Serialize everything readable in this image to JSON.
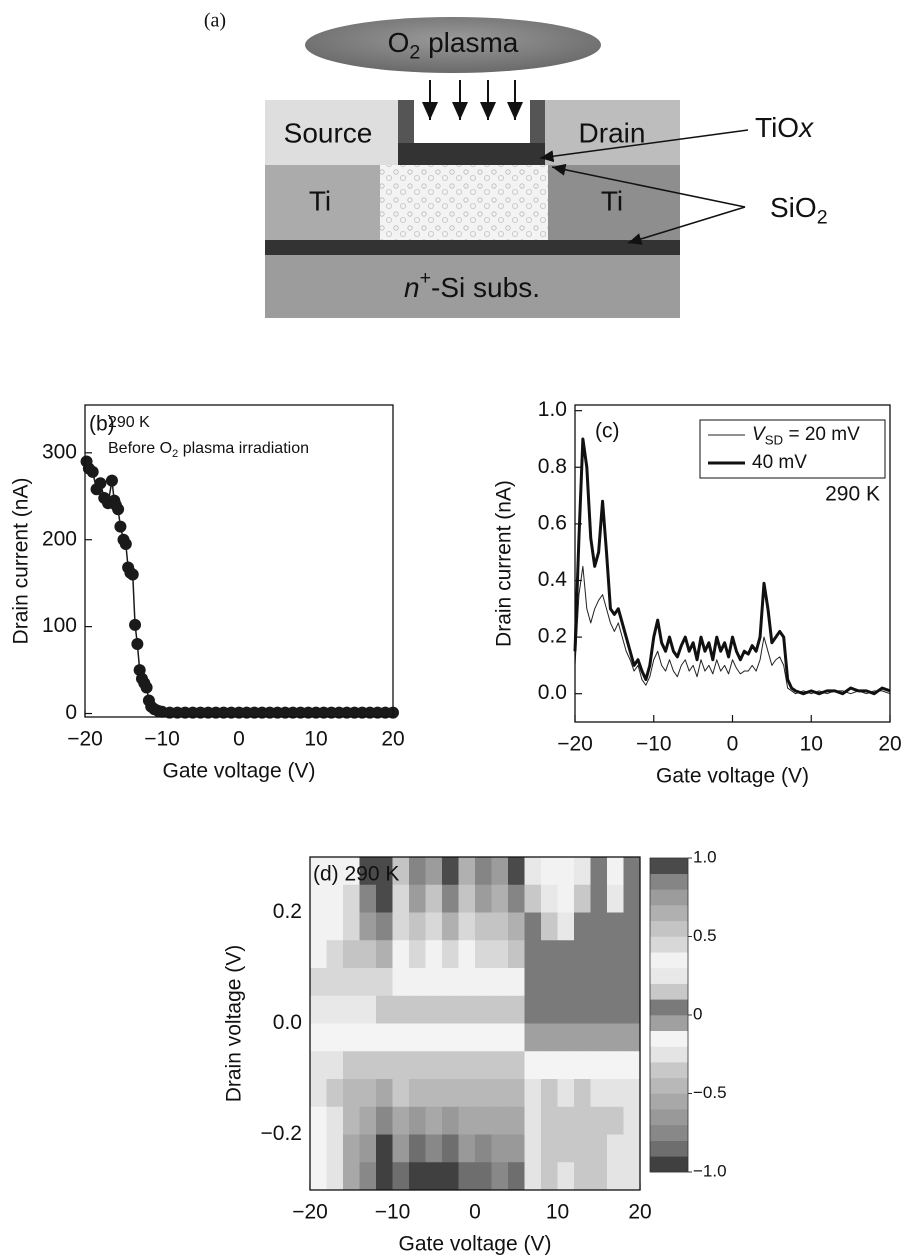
{
  "diagram": {
    "panel_label": "(a)",
    "plasma": [
      "O",
      "2",
      " plasma"
    ],
    "source": "Source",
    "drain": "Drain",
    "ti_left": "Ti",
    "ti_right": "Ti",
    "tiox": [
      "TiO",
      "x"
    ],
    "sio2": [
      "SiO",
      "2"
    ],
    "substrate": [
      "n",
      "+",
      "-Si subs."
    ]
  },
  "chart_data": [
    {
      "type": "scatter",
      "panel_label": "(b)",
      "annotations": [
        "290 K",
        [
          "Before O",
          "2",
          " plasma irradiation"
        ]
      ],
      "x_label": "Gate voltage (V)",
      "y_label": "Drain current (nA)",
      "x": [
        -19.8,
        -19.5,
        -19,
        -18.5,
        -18,
        -17.5,
        -17,
        -16.5,
        -16.2,
        -16,
        -15.7,
        -15.4,
        -15,
        -14.7,
        -14.4,
        -14.1,
        -13.8,
        -13.5,
        -13.2,
        -12.9,
        -12.6,
        -12.3,
        -12,
        -11.7,
        -11.4,
        -11,
        -10.5,
        -10,
        -9,
        -8,
        -7,
        -6,
        -5,
        -4,
        -3,
        -2,
        -1,
        0,
        1,
        2,
        3,
        4,
        5,
        6,
        7,
        8,
        9,
        10,
        11,
        12,
        13,
        14,
        15,
        16,
        17,
        18,
        19,
        20
      ],
      "values": [
        290,
        282,
        278,
        258,
        265,
        248,
        242,
        268,
        245,
        240,
        235,
        215,
        200,
        195,
        168,
        162,
        160,
        102,
        80,
        50,
        40,
        35,
        30,
        15,
        8,
        5,
        3,
        2,
        1,
        1,
        1,
        1,
        1,
        1,
        1,
        1,
        1,
        1,
        1,
        1,
        1,
        1,
        1,
        1,
        1,
        1,
        1,
        1,
        1,
        1,
        1,
        1,
        1,
        1,
        1,
        1,
        1,
        1
      ],
      "color": "#1a1a1a",
      "xlim": [
        -20,
        20
      ],
      "ylim": [
        -4,
        355
      ],
      "xticks": [
        {
          "value": -20,
          "label": "−20"
        },
        {
          "value": -10,
          "label": "−10"
        },
        0,
        10,
        20
      ],
      "yticks": [
        0,
        100,
        200,
        300
      ]
    },
    {
      "type": "line",
      "panel_label": "(c)",
      "annotations": [
        "290 K"
      ],
      "x_label": "Gate voltage (V)",
      "y_label": "Drain current (nA)",
      "x": [
        -20,
        -19.5,
        -19,
        -18.5,
        -18,
        -17.5,
        -17,
        -16.5,
        -16,
        -15.5,
        -15,
        -14.5,
        -14,
        -13.5,
        -13,
        -12.5,
        -12,
        -11.5,
        -11,
        -10.5,
        -10,
        -9.5,
        -9,
        -8.5,
        -8,
        -7.5,
        -7,
        -6.5,
        -6,
        -5.5,
        -5,
        -4.5,
        -4,
        -3.5,
        -3,
        -2.5,
        -2,
        -1.5,
        -1,
        -0.5,
        0,
        0.5,
        1,
        1.5,
        2,
        2.5,
        3,
        3.5,
        4,
        4.5,
        5,
        5.5,
        6,
        6.5,
        7,
        7.5,
        8,
        9,
        10,
        11,
        12,
        13,
        14,
        15,
        16,
        17,
        18,
        19,
        20
      ],
      "series": [
        {
          "name": [
            "V",
            "SD",
            " = 20 mV"
          ],
          "color": "#222222",
          "width": 1,
          "values": [
            0.1,
            0.35,
            0.45,
            0.3,
            0.25,
            0.3,
            0.33,
            0.35,
            0.3,
            0.25,
            0.22,
            0.25,
            0.2,
            0.15,
            0.12,
            0.08,
            0.1,
            0.05,
            0.03,
            0.06,
            0.12,
            0.15,
            0.1,
            0.08,
            0.12,
            0.08,
            0.06,
            0.1,
            0.12,
            0.08,
            0.1,
            0.06,
            0.12,
            0.08,
            0.1,
            0.07,
            0.12,
            0.08,
            0.1,
            0.07,
            0.12,
            0.09,
            0.07,
            0.08,
            0.08,
            0.1,
            0.08,
            0.12,
            0.2,
            0.15,
            0.1,
            0.12,
            0.13,
            0.1,
            0.02,
            0.01,
            0.0,
            0.01,
            0.0,
            0.01,
            0.0,
            0.01,
            0.01,
            0.0,
            0.01,
            0.0,
            0.01,
            0.01,
            0.0
          ]
        },
        {
          "name": "40 mV",
          "color": "#111111",
          "width": 3,
          "values": [
            0.15,
            0.55,
            0.9,
            0.8,
            0.55,
            0.45,
            0.5,
            0.68,
            0.5,
            0.3,
            0.28,
            0.3,
            0.25,
            0.2,
            0.15,
            0.1,
            0.12,
            0.08,
            0.05,
            0.1,
            0.2,
            0.26,
            0.18,
            0.15,
            0.2,
            0.15,
            0.13,
            0.17,
            0.2,
            0.15,
            0.18,
            0.12,
            0.2,
            0.15,
            0.18,
            0.12,
            0.2,
            0.15,
            0.18,
            0.13,
            0.2,
            0.15,
            0.12,
            0.15,
            0.14,
            0.17,
            0.15,
            0.2,
            0.39,
            0.3,
            0.18,
            0.2,
            0.22,
            0.2,
            0.05,
            0.02,
            0.01,
            0.0,
            0.01,
            0.0,
            0.01,
            0.01,
            0.0,
            0.02,
            0.01,
            0.01,
            0.0,
            0.02,
            0.01
          ]
        }
      ],
      "xlim": [
        -20,
        20
      ],
      "ylim": [
        -0.1,
        1.02
      ],
      "xticks": [
        {
          "value": -20,
          "label": "−20"
        },
        {
          "value": -10,
          "label": "−10"
        },
        0,
        10,
        20
      ],
      "yticks": [
        {
          "value": 0,
          "label": "0.0"
        },
        0.2,
        0.4,
        0.6,
        0.8,
        {
          "value": 1,
          "label": "1.0"
        }
      ],
      "legend": "upper right"
    },
    {
      "type": "heatmap",
      "panel_label": "(d) 290 K",
      "x_label": "Gate voltage (V)",
      "y_label": "Drain voltage (V)",
      "x": [
        -19,
        -17,
        -15,
        -13,
        -11,
        -9,
        -7,
        -5,
        -3,
        -1,
        1,
        3,
        5,
        7,
        9,
        11,
        13,
        15,
        17,
        19
      ],
      "y": [
        0.275,
        0.225,
        0.175,
        0.125,
        0.075,
        0.025,
        -0.025,
        -0.075,
        -0.125,
        -0.175,
        -0.225,
        -0.275
      ],
      "z": [
        [
          0.35,
          0.35,
          0.35,
          0.9,
          1.0,
          0.5,
          0.8,
          0.7,
          0.9,
          0.6,
          0.85,
          0.7,
          0.9,
          0.2,
          0.3,
          0.35,
          0.2,
          0.05,
          0.3,
          0.05
        ],
        [
          0.35,
          0.35,
          0.4,
          0.8,
          0.9,
          0.45,
          0.7,
          0.55,
          0.8,
          0.5,
          0.7,
          0.6,
          0.8,
          0.15,
          0.25,
          0.3,
          0.15,
          0.05,
          0.2,
          0.05
        ],
        [
          0.35,
          0.35,
          0.45,
          0.7,
          0.8,
          0.4,
          0.55,
          0.45,
          0.6,
          0.45,
          0.55,
          0.5,
          0.6,
          0.05,
          0.15,
          0.2,
          0.05,
          0.05,
          0.05,
          0.05
        ],
        [
          0.35,
          0.4,
          0.5,
          0.55,
          0.6,
          0.35,
          0.45,
          0.35,
          0.45,
          0.35,
          0.45,
          0.4,
          0.5,
          0.05,
          0.05,
          0.05,
          0.05,
          0.05,
          0.05,
          0.05
        ],
        [
          0.4,
          0.45,
          0.4,
          0.4,
          0.45,
          0.3,
          0.35,
          0.3,
          0.35,
          0.3,
          0.35,
          0.3,
          0.35,
          0.05,
          0.05,
          0.05,
          0.05,
          0.05,
          0.05,
          0.05
        ],
        [
          0.2,
          0.2,
          0.2,
          0.2,
          0.15,
          0.15,
          0.15,
          0.15,
          0.15,
          0.15,
          0.15,
          0.15,
          0.15,
          0.05,
          0.05,
          0.05,
          0.05,
          0.05,
          0.05,
          0.05
        ],
        [
          -0.2,
          -0.2,
          -0.2,
          -0.2,
          -0.15,
          -0.15,
          -0.15,
          -0.15,
          -0.15,
          -0.15,
          -0.15,
          -0.15,
          -0.15,
          -0.05,
          -0.05,
          -0.05,
          -0.05,
          -0.05,
          -0.05,
          -0.05
        ],
        [
          -0.3,
          -0.3,
          -0.35,
          -0.4,
          -0.4,
          -0.35,
          -0.35,
          -0.35,
          -0.35,
          -0.35,
          -0.35,
          -0.35,
          -0.35,
          -0.15,
          -0.2,
          -0.15,
          -0.2,
          -0.15,
          -0.2,
          -0.15
        ],
        [
          -0.25,
          -0.35,
          -0.45,
          -0.5,
          -0.55,
          -0.4,
          -0.5,
          -0.45,
          -0.5,
          -0.45,
          -0.5,
          -0.45,
          -0.45,
          -0.25,
          -0.35,
          -0.3,
          -0.35,
          -0.3,
          -0.3,
          -0.25
        ],
        [
          -0.2,
          -0.3,
          -0.5,
          -0.6,
          -0.75,
          -0.55,
          -0.65,
          -0.6,
          -0.7,
          -0.55,
          -0.6,
          -0.55,
          -0.6,
          -0.3,
          -0.4,
          -0.35,
          -0.4,
          -0.35,
          -0.35,
          -0.3
        ],
        [
          -0.2,
          -0.3,
          -0.55,
          -0.7,
          -0.9,
          -0.7,
          -0.8,
          -0.75,
          -0.85,
          -0.7,
          -0.75,
          -0.7,
          -0.7,
          -0.3,
          -0.35,
          -0.4,
          -0.35,
          -0.4,
          -0.3,
          -0.3
        ],
        [
          -0.2,
          -0.3,
          -0.6,
          -0.75,
          -1.0,
          -0.85,
          -0.9,
          -0.95,
          -0.9,
          -0.8,
          -0.85,
          -0.75,
          -0.8,
          -0.3,
          -0.35,
          -0.3,
          -0.35,
          -0.4,
          -0.3,
          -0.3
        ]
      ],
      "xlim": [
        -20,
        20
      ],
      "ylim": [
        -0.3,
        0.3
      ],
      "xticks": [
        {
          "value": -20,
          "label": "−20"
        },
        {
          "value": -10,
          "label": "−10"
        },
        0,
        10,
        20
      ],
      "yticks": [
        {
          "value": -0.2,
          "label": "−0.2"
        },
        {
          "value": 0,
          "label": "0.0"
        },
        0.2
      ],
      "colorbar": {
        "lim": [
          -1,
          1
        ],
        "ticks": [
          {
            "value": 1,
            "label": "1.0"
          },
          0.5,
          0,
          {
            "value": -0.5,
            "label": "−0.5"
          },
          {
            "value": -1,
            "label": "−1.0"
          }
        ],
        "colors": [
          "#404040",
          "#6e6e6e",
          "#888888",
          "#999999",
          "#a8a8a8",
          "#b8b8b8",
          "#c8c8c8",
          "#e4e4e4",
          "#f4f4f4",
          "#a0a0a0",
          "#7a7a7a",
          "#c8c8c8",
          "#e8e8e8",
          "#f2f2f2",
          "#d8d8d8",
          "#c4c4c4",
          "#b0b0b0",
          "#9c9c9c",
          "#858585",
          "#4a4a4a"
        ]
      }
    }
  ]
}
